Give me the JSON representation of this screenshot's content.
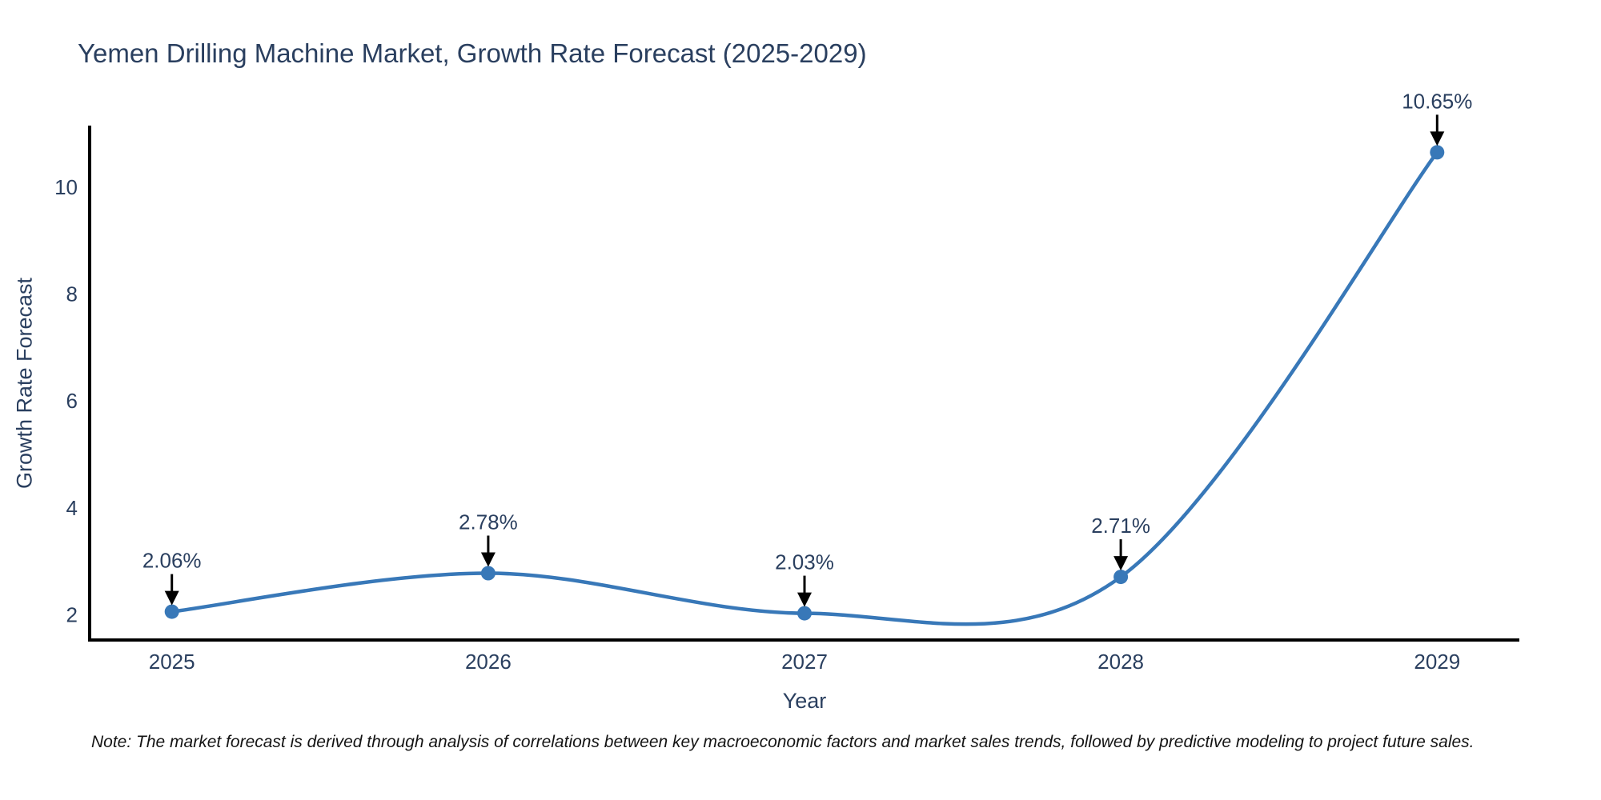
{
  "figure": {
    "note": "Note: The market forecast is derived through analysis of correlations between key macroeconomic factors and market sales trends, followed by predictive modeling to project future sales."
  },
  "chart_data": {
    "type": "line",
    "title": "Yemen Drilling Machine Market, Growth Rate Forecast (2025-2029)",
    "xlabel": "Year",
    "ylabel": "Growth Rate Forecast",
    "categories": [
      "2025",
      "2026",
      "2027",
      "2028",
      "2029"
    ],
    "x": [
      2025,
      2026,
      2027,
      2028,
      2029
    ],
    "values": [
      2.06,
      2.78,
      2.03,
      2.71,
      10.65
    ],
    "point_labels": [
      "2.06%",
      "2.78%",
      "2.03%",
      "2.71%",
      "10.65%"
    ],
    "line_shape": "spline",
    "markers": true,
    "grid": false,
    "legend_position": "none",
    "annotation_style": "arrow-down-to-point",
    "xlim": [
      2024.74,
      2029.26
    ],
    "ylim": [
      1.53,
      11.15
    ],
    "yticks": [
      2,
      4,
      6,
      8,
      10
    ],
    "colors": {
      "line": "#3878b8",
      "marker": "#3878b8",
      "axis_line": "#000000",
      "text": "#2a3f5f",
      "arrow": "#000000",
      "background": "#ffffff"
    }
  }
}
